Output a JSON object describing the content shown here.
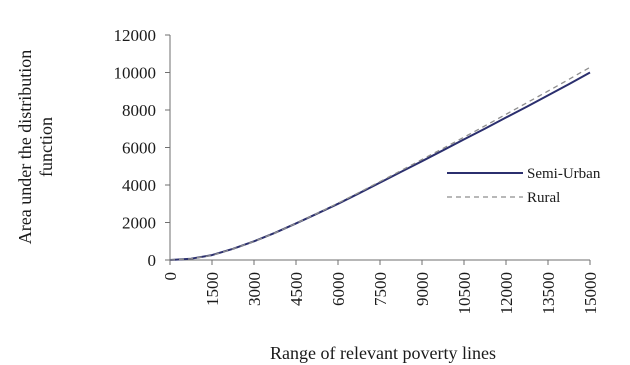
{
  "chart_data": {
    "type": "line",
    "title": "",
    "xlabel": "Range of relevant poverty lines",
    "ylabel": "Area under the distribution function",
    "xlim": [
      0,
      15000
    ],
    "ylim": [
      0,
      12000
    ],
    "x_ticks": [
      0,
      1500,
      3000,
      4500,
      6000,
      7500,
      9000,
      10500,
      12000,
      13500,
      15000
    ],
    "y_ticks": [
      0,
      2000,
      4000,
      6000,
      8000,
      10000,
      12000
    ],
    "grid": false,
    "legend_placement": "right",
    "series": [
      {
        "name": "Semi-Urban",
        "style": "solid",
        "color": "#2b2f6e",
        "x": [
          0,
          750,
          1500,
          2250,
          3000,
          3750,
          4500,
          5250,
          6000,
          6750,
          7500,
          8250,
          9000,
          9750,
          10500,
          11250,
          12000,
          12750,
          13500,
          14250,
          15000
        ],
        "y": [
          0,
          70,
          260,
          600,
          1000,
          1450,
          1950,
          2470,
          3000,
          3560,
          4130,
          4700,
          5270,
          5850,
          6430,
          7010,
          7600,
          8180,
          8780,
          9380,
          10000
        ]
      },
      {
        "name": "Rural",
        "style": "dashed",
        "color": "#8e8e8e",
        "x": [
          0,
          750,
          1500,
          2250,
          3000,
          3750,
          4500,
          5250,
          6000,
          6750,
          7500,
          8250,
          9000,
          9750,
          10500,
          11250,
          12000,
          12750,
          13500,
          14250,
          15000
        ],
        "y": [
          0,
          65,
          250,
          590,
          990,
          1445,
          1950,
          2480,
          3030,
          3600,
          4180,
          4770,
          5360,
          5950,
          6550,
          7160,
          7770,
          8390,
          9010,
          9640,
          10280
        ]
      }
    ]
  }
}
